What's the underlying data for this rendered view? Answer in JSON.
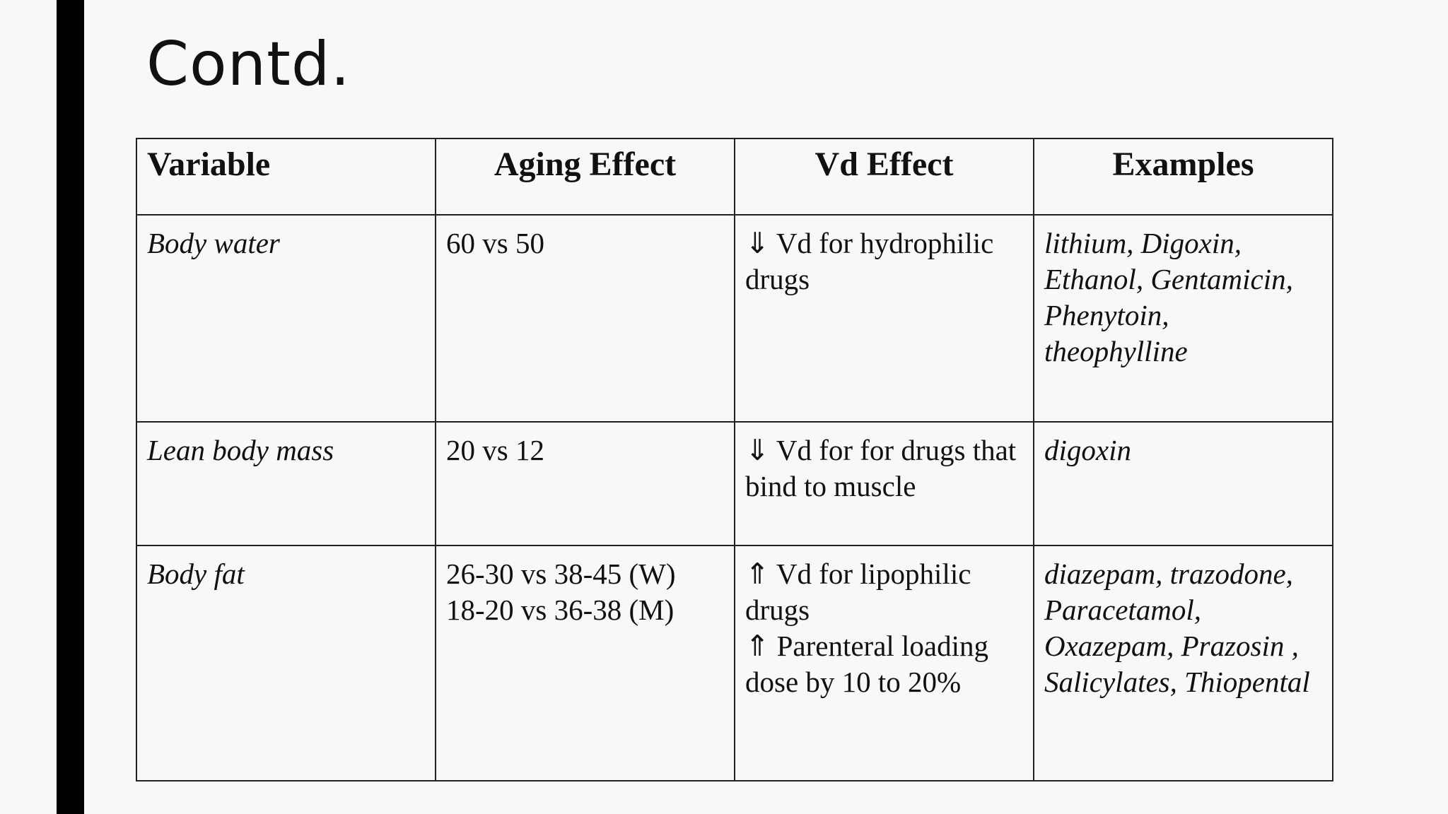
{
  "slide": {
    "title": "Contd."
  },
  "table": {
    "headers": [
      "Variable",
      "Aging Effect",
      "Vd Effect",
      "Examples"
    ],
    "rows": [
      {
        "variable": " Body water",
        "aging_effect": "60 vs 50",
        "vd_effect": "⇓ Vd for hydrophilic\ndrugs",
        "examples": "lithium, Digoxin,\nEthanol, Gentamicin,\nPhenytoin,\ntheophylline"
      },
      {
        "variable": "Lean body mass",
        "aging_effect": "20 vs 12",
        "vd_effect": "⇓ Vd for for drugs that\nbind to muscle",
        "examples": "digoxin"
      },
      {
        "variable": "Body fat",
        "aging_effect": " 26-30 vs 38-45 (W)\n18-20 vs 36-38 (M)",
        "vd_effect": "⇑ Vd for lipophilic\ndrugs\n⇑ Parenteral loading\ndose        by 10 to 20%",
        "examples": "diazepam, trazodone,\nParacetamol,\nOxazepam, Prazosin ,\nSalicylates, Thiopental"
      }
    ]
  }
}
